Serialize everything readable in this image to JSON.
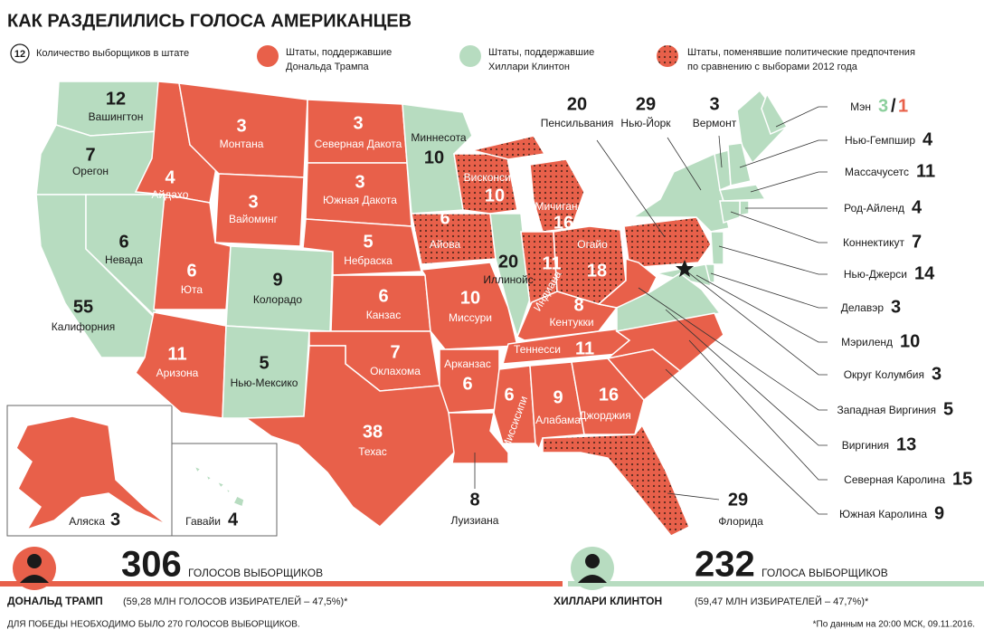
{
  "title": "КАК РАЗДЕЛИЛИСЬ ГОЛОСА АМЕРИКАНЦЕВ",
  "legend": {
    "badge": "12",
    "badge_text": "Количество выборщиков в штате",
    "trump": [
      "Штаты, поддержавшие",
      "Дональда Трампа"
    ],
    "clinton": [
      "Штаты, поддержавшие",
      "Хиллари Клинтон"
    ],
    "flipped": [
      "Штаты, поменявшие политические предпочтения",
      "по сравнению с выборами 2012 года"
    ]
  },
  "states": [
    {
      "name": "Вашингтон",
      "votes": 12
    },
    {
      "name": "Орегон",
      "votes": 7
    },
    {
      "name": "Калифорния",
      "votes": 55
    },
    {
      "name": "Невада",
      "votes": 6
    },
    {
      "name": "Айдахо",
      "votes": 4
    },
    {
      "name": "Монтана",
      "votes": 3
    },
    {
      "name": "Вайоминг",
      "votes": 3
    },
    {
      "name": "Юта",
      "votes": 6
    },
    {
      "name": "Колорадо",
      "votes": 9
    },
    {
      "name": "Аризона",
      "votes": 11
    },
    {
      "name": "Нью-Мексико",
      "votes": 5
    },
    {
      "name": "Северная Дакота",
      "votes": 3
    },
    {
      "name": "Южная Дакота",
      "votes": 3
    },
    {
      "name": "Небраска",
      "votes": 5
    },
    {
      "name": "Канзас",
      "votes": 6
    },
    {
      "name": "Оклахома",
      "votes": 7
    },
    {
      "name": "Техас",
      "votes": 38
    },
    {
      "name": "Миннесота",
      "votes": 10
    },
    {
      "name": "Айова",
      "votes": 6
    },
    {
      "name": "Миссури",
      "votes": 10
    },
    {
      "name": "Арканзас",
      "votes": 6
    },
    {
      "name": "Луизиана",
      "votes": 8
    },
    {
      "name": "Висконсин",
      "votes": 10
    },
    {
      "name": "Иллинойс",
      "votes": 20
    },
    {
      "name": "Мичиган",
      "votes": 16
    },
    {
      "name": "Индиана",
      "votes": 11
    },
    {
      "name": "Огайо",
      "votes": 18
    },
    {
      "name": "Кентукки",
      "votes": 8
    },
    {
      "name": "Теннесси",
      "votes": 11
    },
    {
      "name": "Миссисипи",
      "votes": 6
    },
    {
      "name": "Алабама",
      "votes": 9
    },
    {
      "name": "Джорджия",
      "votes": 16
    },
    {
      "name": "Флорида",
      "votes": 29
    },
    {
      "name": "Пенсильвания",
      "votes": 20
    },
    {
      "name": "Нью-Йорк",
      "votes": 29
    },
    {
      "name": "Вермонт",
      "votes": 3
    },
    {
      "name": "Мэн",
      "votes_clinton": 3,
      "separator": "/",
      "votes_trump": 1
    },
    {
      "name": "Нью-Гемпшир",
      "votes": 4
    },
    {
      "name": "Массачусетс",
      "votes": 11
    },
    {
      "name": "Род-Айленд",
      "votes": 4
    },
    {
      "name": "Коннектикут",
      "votes": 7
    },
    {
      "name": "Нью-Джерси",
      "votes": 14
    },
    {
      "name": "Делавэр",
      "votes": 3
    },
    {
      "name": "Мэриленд",
      "votes": 10
    },
    {
      "name": "Округ Колумбия",
      "votes": 3
    },
    {
      "name": "Западная Виргиния",
      "votes": 5
    },
    {
      "name": "Виргиния",
      "votes": 13
    },
    {
      "name": "Северная Каролина",
      "votes": 15
    },
    {
      "name": "Южная Каролина",
      "votes": 9
    },
    {
      "name": "Аляска",
      "votes": 3
    },
    {
      "name": "Гавайи",
      "votes": 4
    }
  ],
  "summary": {
    "trump": {
      "votes": 306,
      "votes_label": "ГОЛОСОВ ВЫБОРЩИКОВ",
      "name": "ДОНАЛЬД ТРАМП",
      "popular": "(59,28 МЛН ГОЛОСОВ ИЗБИРАТЕЛЕЙ – 47,5%)*"
    },
    "clinton": {
      "votes": 232,
      "votes_label": "ГОЛОСА ВЫБОРЩИКОВ",
      "name": "ХИЛЛАРИ КЛИНТОН",
      "popular": "(59,47 МЛН ИЗБИРАТЕЛЕЙ – 47,7%)*"
    }
  },
  "footnote_left": "ДЛЯ ПОБЕДЫ НЕОБХОДИМО БЫЛО 270 ГОЛОСОВ ВЫБОРЩИКОВ.",
  "footnote_right": "*По данным на 20:00 МСК, 09.11.2016."
}
